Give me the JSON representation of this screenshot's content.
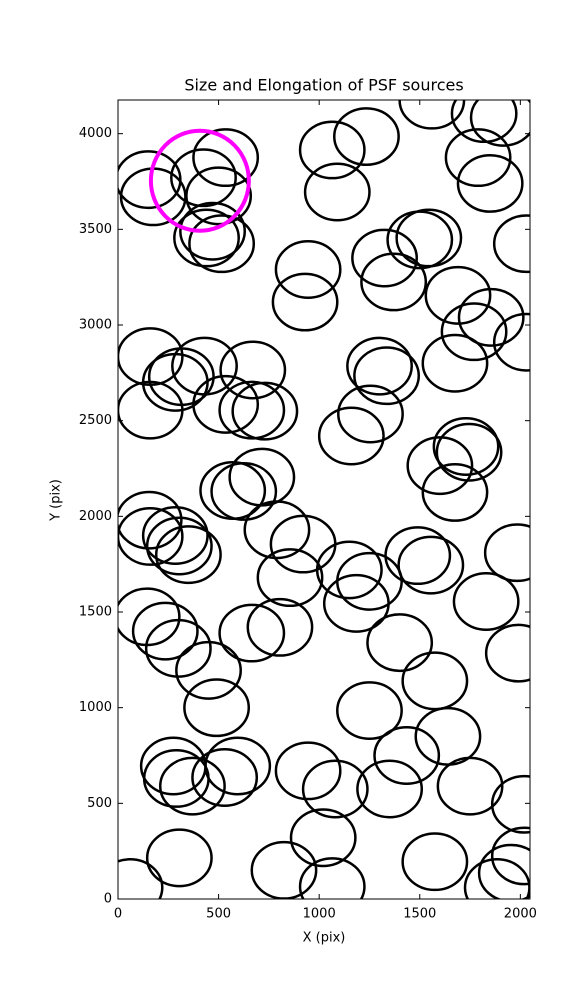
{
  "chart_data": {
    "type": "ellipse",
    "title": "Size and Elongation of PSF sources",
    "x_label": "X (pix)",
    "y_label": "Y (pix)",
    "xlim": [
      0,
      2048
    ],
    "ylim": [
      0,
      4176
    ],
    "xticks": [
      0,
      500,
      1000,
      1500,
      2000
    ],
    "yticks": [
      0,
      500,
      1000,
      1500,
      2000,
      2500,
      3000,
      3500,
      4000
    ],
    "series": [
      {
        "color": "#000000",
        "width": 320,
        "height": 295,
        "x": [
          150,
          175,
          425,
          535,
          500,
          470,
          440,
          515,
          1065,
          1235,
          1090,
          1790,
          1850,
          1545,
          1500,
          1325,
          1370,
          945,
          930,
          1690,
          1855,
          1770,
          1675,
          2030,
          2030,
          160,
          285,
          315,
          430,
          670,
          535,
          665,
          730,
          160,
          1300,
          1335,
          1255,
          1160,
          1600,
          1730,
          1745,
          1675,
          715,
          570,
          625,
          155,
          160,
          285,
          350,
          305,
          790,
          920,
          855,
          1150,
          1250,
          1185,
          1490,
          1555,
          1830,
          1985,
          145,
          235,
          300,
          450,
          490,
          665,
          805,
          1400,
          1575,
          1250,
          1640,
          1435,
          1990,
          275,
          290,
          370,
          595,
          530,
          945,
          1080,
          1350,
          1750,
          2020,
          1020,
          305,
          825,
          1065,
          1575,
          1955,
          2020,
          1885,
          60,
          1560,
          1820,
          1915
        ],
        "y": [
          3760,
          3670,
          3770,
          3875,
          3675,
          3490,
          3455,
          3425,
          3915,
          3985,
          3695,
          3875,
          3740,
          3455,
          3445,
          3350,
          3225,
          3290,
          3120,
          3155,
          3040,
          2965,
          2800,
          3425,
          2910,
          2835,
          2700,
          2730,
          2785,
          2765,
          2585,
          2555,
          2550,
          2555,
          2785,
          2735,
          2535,
          2420,
          2265,
          2365,
          2335,
          2125,
          2205,
          2135,
          2130,
          1980,
          1895,
          1900,
          1800,
          1845,
          1930,
          1855,
          1680,
          1720,
          1660,
          1545,
          1795,
          1745,
          1555,
          1810,
          1475,
          1400,
          1310,
          1195,
          1000,
          1390,
          1420,
          1340,
          1140,
          985,
          850,
          750,
          1285,
          695,
          630,
          590,
          695,
          635,
          670,
          575,
          575,
          590,
          495,
          320,
          215,
          150,
          65,
          195,
          135,
          225,
          60,
          60,
          4175,
          4105,
          4085
        ]
      },
      {
        "color": "#ff00ff",
        "width": 487,
        "height": 523,
        "x": [
          407
        ],
        "y": [
          3754
        ]
      }
    ]
  }
}
